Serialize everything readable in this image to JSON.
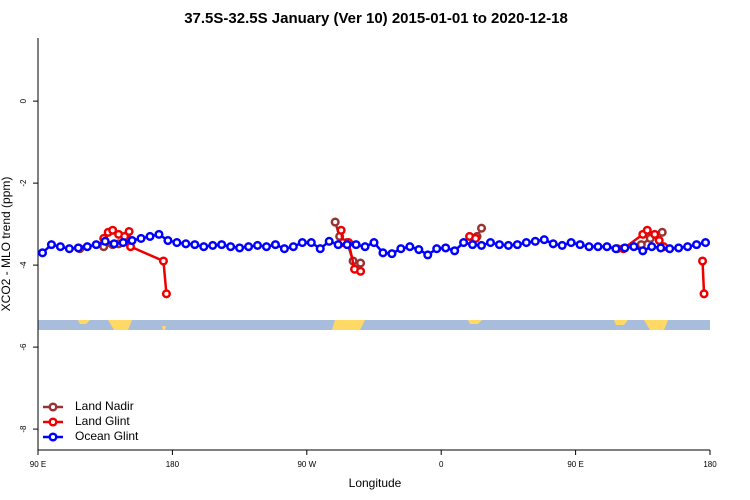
{
  "chart_data": {
    "type": "line",
    "title": "37.5S-32.5S January (Ver 10)   2015-01-01 to 2020-12-18",
    "x_label": "Longitude",
    "y_label": "XCO2 - MLO trend (ppm)",
    "xlim": [
      90,
      540
    ],
    "ylim": [
      -8.51,
      1.54
    ],
    "xticks": [
      {
        "value": 90,
        "label": "90 E"
      },
      180,
      {
        "value": 270,
        "label": "90 W"
      },
      {
        "value": 360,
        "label": "0"
      },
      {
        "value": 450,
        "label": "90 E"
      },
      {
        "value": 540,
        "label": "180"
      }
    ],
    "yticks": [
      0,
      -2,
      -4,
      -6,
      -8
    ],
    "legend": "bottom-left",
    "series": [
      {
        "name": "Land Nadir",
        "color": "#993333",
        "x": [
          118,
          null,
          134,
          140,
          144,
          148,
          null,
          289,
          292,
          297,
          301,
          306,
          null,
          384,
          387,
          null,
          478,
          494,
          500,
          508
        ],
        "values": [
          -3.6,
          null,
          -3.55,
          -3.5,
          -3.48,
          -3.42,
          null,
          -2.95,
          -3.3,
          -3.45,
          -3.9,
          -3.95,
          null,
          -3.3,
          -3.1,
          null,
          -3.6,
          -3.5,
          -3.35,
          -3.2
        ]
      },
      {
        "name": "Land Glint",
        "color": "#ee0000",
        "x": [
          134,
          137,
          140,
          144,
          148,
          151,
          152,
          174,
          176,
          null,
          293,
          294,
          298,
          302,
          306,
          null,
          379,
          383,
          null,
          482,
          495,
          498,
          503,
          506,
          509,
          null,
          535,
          536
        ],
        "values": [
          -3.35,
          -3.2,
          -3.15,
          -3.25,
          -3.3,
          -3.18,
          -3.55,
          -3.9,
          -4.7,
          null,
          -3.15,
          -3.45,
          -3.45,
          -4.1,
          -4.15,
          null,
          -3.3,
          -3.35,
          null,
          -3.6,
          -3.25,
          -3.15,
          -3.25,
          -3.4,
          -3.55,
          null,
          -3.9,
          -4.7
        ]
      },
      {
        "name": "Ocean Glint",
        "color": "#0000ff",
        "x": [
          93,
          99,
          105,
          111,
          117,
          123,
          129,
          135,
          141,
          147,
          153,
          159,
          165,
          171,
          177,
          183,
          189,
          195,
          201,
          207,
          213,
          219,
          225,
          231,
          237,
          243,
          249,
          255,
          261,
          267,
          273,
          279,
          285,
          291,
          297,
          303,
          309,
          315,
          321,
          327,
          333,
          339,
          345,
          351,
          357,
          363,
          369,
          375,
          381,
          387,
          393,
          399,
          405,
          411,
          417,
          423,
          429,
          435,
          441,
          447,
          453,
          459,
          465,
          471,
          477,
          483,
          489,
          495,
          501,
          507,
          513,
          519,
          525,
          531,
          537
        ],
        "values": [
          -3.7,
          -3.5,
          -3.55,
          -3.6,
          -3.58,
          -3.55,
          -3.5,
          -3.42,
          -3.48,
          -3.45,
          -3.4,
          -3.35,
          -3.3,
          -3.25,
          -3.4,
          -3.45,
          -3.48,
          -3.5,
          -3.55,
          -3.52,
          -3.5,
          -3.55,
          -3.58,
          -3.55,
          -3.52,
          -3.55,
          -3.5,
          -3.6,
          -3.55,
          -3.45,
          -3.45,
          -3.6,
          -3.42,
          -3.5,
          -3.5,
          -3.5,
          -3.55,
          -3.45,
          -3.7,
          -3.72,
          -3.6,
          -3.55,
          -3.62,
          -3.75,
          -3.6,
          -3.58,
          -3.65,
          -3.45,
          -3.5,
          -3.52,
          -3.45,
          -3.5,
          -3.52,
          -3.5,
          -3.45,
          -3.42,
          -3.38,
          -3.48,
          -3.52,
          -3.45,
          -3.5,
          -3.55,
          -3.55,
          -3.55,
          -3.6,
          -3.58,
          -3.55,
          -3.65,
          -3.55,
          -3.58,
          -3.6,
          -3.58,
          -3.55,
          -3.5,
          -3.45
        ]
      }
    ]
  }
}
